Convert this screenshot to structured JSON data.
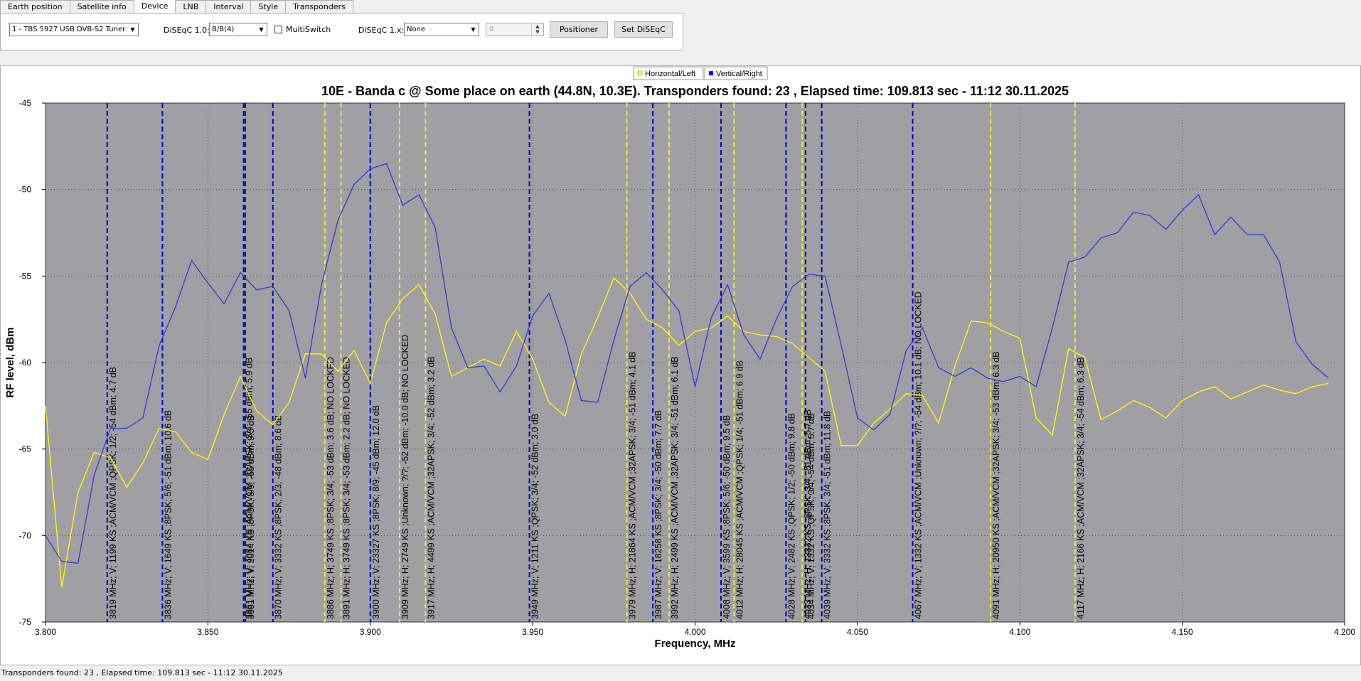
{
  "tabs": [
    {
      "label": "Earth position",
      "active": false
    },
    {
      "label": "Satellite info",
      "active": false
    },
    {
      "label": "Device",
      "active": true
    },
    {
      "label": "LNB",
      "active": false
    },
    {
      "label": "Interval",
      "active": false
    },
    {
      "label": "Style",
      "active": false
    },
    {
      "label": "Transponders",
      "active": false
    }
  ],
  "device": {
    "tuner_value": "1 - TBS 5927 USB DVB-S2 Tuner",
    "diseqc10_label": "DiSEqC 1.0:",
    "diseqc10_value": "B/B(4)",
    "multiswitch_label": "MultiSwitch",
    "multiswitch_checked": false,
    "diseqc1x_label": "DiSEqC 1.x:",
    "diseqc1x_value": "None",
    "spin_value": "0",
    "positioner_label": "Positioner",
    "set_diseqc_label": "Set DiSEqC"
  },
  "status_text": "Transponders found: 23 , Elapsed time: 109.813 sec - 11:12 30.11.2025",
  "colors": {
    "plot_bg": "#a09fa4",
    "horizontal": "#ffff00",
    "vertical": "#0000ff",
    "vertical_line": "#3838d0",
    "marker_v": "#0000cc",
    "marker_h": "#e8e840"
  },
  "chart_data": {
    "type": "line",
    "title": "10E - Banda c @ Some place on earth (44.8N, 10.3E). Transponders found: 23 , Elapsed time: 109.813 sec - 11:12 30.11.2025",
    "xlabel": "Frequency, MHz",
    "ylabel": "RF level, dBm",
    "xlim": [
      3800,
      4200
    ],
    "ylim": [
      -75,
      -45
    ],
    "xticks": [
      "3.800",
      "3.850",
      "3.900",
      "3.950",
      "4.000",
      "4.050",
      "4.100",
      "4.150",
      "4.200"
    ],
    "yticks": [
      "-45",
      "-50",
      "-55",
      "-60",
      "-65",
      "-70",
      "-75"
    ],
    "grid": true,
    "legend_position": "top-center",
    "series": [
      {
        "name": "Horizontal/Left",
        "color": "#ffff00",
        "x": [
          3800,
          3805,
          3810,
          3815,
          3820,
          3825,
          3830,
          3835,
          3840,
          3845,
          3850,
          3855,
          3860,
          3865,
          3870,
          3875,
          3880,
          3885,
          3890,
          3895,
          3900,
          3905,
          3910,
          3915,
          3920,
          3925,
          3930,
          3935,
          3940,
          3945,
          3950,
          3955,
          3960,
          3965,
          3970,
          3975,
          3980,
          3985,
          3990,
          3995,
          4000,
          4005,
          4010,
          4015,
          4020,
          4025,
          4030,
          4035,
          4040,
          4045,
          4050,
          4055,
          4060,
          4065,
          4070,
          4075,
          4080,
          4085,
          4090,
          4095,
          4100,
          4105,
          4110,
          4115,
          4120,
          4125,
          4130,
          4135,
          4140,
          4145,
          4150,
          4155,
          4160,
          4165,
          4170,
          4175,
          4180,
          4185,
          4190,
          4195
        ],
        "y": [
          -62.5,
          -73,
          -67.5,
          -65.2,
          -65.5,
          -67.2,
          -65.8,
          -63.8,
          -64,
          -65.2,
          -65.6,
          -63,
          -60.8,
          -62.8,
          -63.6,
          -62.3,
          -59.5,
          -59.5,
          -60.5,
          -59.3,
          -61.2,
          -57.7,
          -56.3,
          -55.5,
          -57.2,
          -60.8,
          -60.3,
          -59.8,
          -60.2,
          -58.2,
          -59.8,
          -62.3,
          -63.1,
          -59.5,
          -57.4,
          -55.1,
          -56,
          -57.5,
          -58,
          -59,
          -58.2,
          -58,
          -57.3,
          -58.2,
          -58.4,
          -58.5,
          -58.9,
          -59.7,
          -60.5,
          -64.8,
          -64.8,
          -63.5,
          -62.7,
          -61.8,
          -61.9,
          -63.5,
          -60.2,
          -57.6,
          -57.7,
          -58.2,
          -58.6,
          -63.2,
          -64.2,
          -59.2,
          -59.7,
          -63.3,
          -62.8,
          -62.2,
          -62.6,
          -63.2,
          -62.2,
          -61.7,
          -61.4,
          -62.1,
          -61.7,
          -61.3,
          -61.6,
          -61.8,
          -61.4,
          -61.2
        ]
      },
      {
        "name": "Vertical/Right",
        "color": "#0000ff",
        "x": [
          3800,
          3805,
          3810,
          3815,
          3820,
          3825,
          3830,
          3835,
          3840,
          3845,
          3850,
          3855,
          3860,
          3865,
          3870,
          3875,
          3880,
          3885,
          3890,
          3895,
          3900,
          3905,
          3910,
          3915,
          3920,
          3925,
          3930,
          3935,
          3940,
          3945,
          3950,
          3955,
          3960,
          3965,
          3970,
          3975,
          3980,
          3985,
          3990,
          3995,
          4000,
          4005,
          4010,
          4015,
          4020,
          4025,
          4030,
          4035,
          4040,
          4045,
          4050,
          4055,
          4060,
          4065,
          4070,
          4075,
          4080,
          4085,
          4090,
          4095,
          4100,
          4105,
          4110,
          4115,
          4120,
          4125,
          4130,
          4135,
          4140,
          4145,
          4150,
          4155,
          4160,
          4165,
          4170,
          4175,
          4180,
          4185,
          4190,
          4195
        ],
        "y": [
          -70,
          -71.5,
          -71.6,
          -66.5,
          -63.8,
          -63.8,
          -63.2,
          -59,
          -56.8,
          -54.1,
          -55.4,
          -56.6,
          -54.8,
          -55.8,
          -55.6,
          -57,
          -60.9,
          -55.5,
          -51.8,
          -49.7,
          -48.8,
          -48.5,
          -50.9,
          -50.3,
          -52.2,
          -58,
          -60.3,
          -60.2,
          -61.7,
          -60.2,
          -57.3,
          -56,
          -58.7,
          -62.2,
          -62.3,
          -58.7,
          -55.6,
          -54.8,
          -55.8,
          -57,
          -61.4,
          -57.4,
          -55.5,
          -58.4,
          -59.8,
          -57.5,
          -55.6,
          -54.9,
          -55,
          -59,
          -63.2,
          -63.9,
          -63,
          -59.3,
          -58,
          -60.3,
          -60.8,
          -60.3,
          -60.9,
          -61.1,
          -60.8,
          -61.4,
          -58,
          -54.2,
          -53.9,
          -52.8,
          -52.5,
          -51.3,
          -51.5,
          -52.3,
          -51.2,
          -50.3,
          -52.6,
          -51.6,
          -52.6,
          -52.6,
          -54.2,
          -58.8,
          -60.1,
          -60.9
        ]
      }
    ],
    "markers": [
      {
        "freq": 3819,
        "pol": "V",
        "label": "3819 MHz; V; 1199 KS ;ACM/VCM ;QPSK; 1/2; -54 dBm; 4.7 dB"
      },
      {
        "freq": 3836,
        "pol": "V",
        "label": "3836 MHz; V; 1649 KS ;8PSK; 5/6; -51 dBm; 10.6 dB"
      },
      {
        "freq": 3861,
        "pol": "V",
        "label": "3861 MHz; V; 4084 KS ;ACM/VCM ;32APSK; 3/4; -55 dBm; 5.9 dB"
      },
      {
        "freq": 3861.5,
        "pol": "V",
        "label": "3861 MHz; V; 2014 KS ;8PSK; 8/9; -55 dBm; 9.5 dB"
      },
      {
        "freq": 3870,
        "pol": "V",
        "label": "3870 MHz; V; 3332 KS ;8PSK; 2/3; -48 dBm; 8.6 dB"
      },
      {
        "freq": 3886,
        "pol": "H",
        "label": "3886 MHz; H; 3749 KS ;8PSK; 3/4; -53 dBm; 3.6 dB; NO LOCKED"
      },
      {
        "freq": 3891,
        "pol": "H",
        "label": "3891 MHz; H; 3749 KS ;8PSK; 3/4; -53 dBm; 2.2 dB; NO LOCKED"
      },
      {
        "freq": 3900,
        "pol": "V",
        "label": "3900 MHz; V; 23327 KS ;8PSK; 8/9; -45 dBm; 12.0 dB"
      },
      {
        "freq": 3909,
        "pol": "H",
        "label": "3909 MHz; H; 2749 KS ;Unknown; ?/?; -52 dBm; -10.0 dB; NO LOCKED"
      },
      {
        "freq": 3917,
        "pol": "H",
        "label": "3917 MHz; H; 4499 KS ;ACM/VCM ;32APSK; 3/4; -52 dBm; 3.2 dB"
      },
      {
        "freq": 3949,
        "pol": "V",
        "label": "3949 MHz; V; 1211 KS ;QPSK; 3/4; -52 dBm; 3.0 dB"
      },
      {
        "freq": 3979,
        "pol": "H",
        "label": "3979 MHz; H; 21864 KS ;ACM/VCM ;32APSK; 3/4; -51 dBm; 4.1 dB"
      },
      {
        "freq": 3987,
        "pol": "V",
        "label": "3987 MHz; V; 18258 KS ;8PSK; 3/4; -50 dBm; 7.7 dB"
      },
      {
        "freq": 3992,
        "pol": "H",
        "label": "3992 MHz; H; 2499 KS ;ACM/VCM ;32APSK; 3/4; -51 dBm; 6.1 dB"
      },
      {
        "freq": 4008,
        "pol": "V",
        "label": "4008 MHz; V; 3599 KS ;8PSK; 5/6; -50 dBm; 9.5 dB"
      },
      {
        "freq": 4012,
        "pol": "H",
        "label": "4012 MHz; H; 28045 KS ;ACM/VCM ;QPSK; 1/4; -51 dBm; 6.9 dB"
      },
      {
        "freq": 4028,
        "pol": "V",
        "label": "4028 MHz; V; 2482 KS ;QPSK; 1/2; -50 dBm; 9.8 dB"
      },
      {
        "freq": 4033,
        "pol": "H",
        "label": "4033 MHz; H; 13332 KS ;8PSK; 3/4; -51 dBm; 5.7 dB"
      },
      {
        "freq": 4034,
        "pol": "V",
        "label": "4034 MHz; V; 1332 KS ;QPSK; 3/4; -54 dBm; 5.7 dB"
      },
      {
        "freq": 4039,
        "pol": "V",
        "label": "4039 MHz; V; 3332 KS ;8PSK; 3/4; -51 dBm; 11.8 dB"
      },
      {
        "freq": 4067,
        "pol": "V",
        "label": "4067 MHz; V; 1332 KS ;ACM/VCM ;Unknown; ?/?; -54 dBm; 10.1 dB; NO LOCKED"
      },
      {
        "freq": 4091,
        "pol": "H",
        "label": "4091 MHz; H; 20950 KS ;ACM/VCM ;32APSK; 3/4; -53 dBm; 6.3 dB"
      },
      {
        "freq": 4117,
        "pol": "H",
        "label": "4117 MHz; H; 2166 KS ;ACM/VCM ;32APSK; 3/4; -54 dBm; 6.3 dB"
      }
    ]
  }
}
